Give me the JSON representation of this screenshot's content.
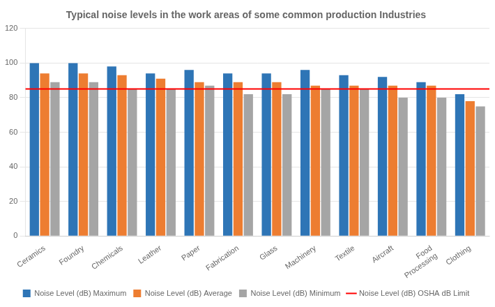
{
  "chart_data": {
    "type": "bar",
    "title": "Typical noise levels in the work areas of some common production Industries",
    "categories": [
      "Ceramics",
      "Foundry",
      "Chemicals",
      "Leather",
      "Paper",
      "Fabrication",
      "Glass",
      "Machinery",
      "Textile",
      "Aircraft",
      "Food\nProcessing",
      "Clothing"
    ],
    "series": [
      {
        "name": "Noise Level (dB) Maximum",
        "color": "#2E75B6",
        "values": [
          100,
          100,
          98,
          94,
          96,
          94,
          94,
          96,
          93,
          92,
          89,
          82
        ]
      },
      {
        "name": "Noise Level (dB) Average",
        "color": "#ED7D31",
        "values": [
          94,
          94,
          93,
          91,
          89,
          89,
          89,
          87,
          87,
          87,
          87,
          78
        ]
      },
      {
        "name": "Noise Level (dB) Minimum",
        "color": "#A5A5A5",
        "values": [
          89,
          89,
          85,
          85,
          87,
          82,
          82,
          85,
          85,
          80,
          80,
          75
        ]
      }
    ],
    "hline": {
      "name": "Noise Level (dB) OSHA dB Limit",
      "value": 85,
      "color": "#FF0000"
    },
    "ylim": [
      0,
      120
    ],
    "yticks": [
      0,
      20,
      40,
      60,
      80,
      100,
      120
    ],
    "grid": true,
    "legend": "bottom"
  }
}
